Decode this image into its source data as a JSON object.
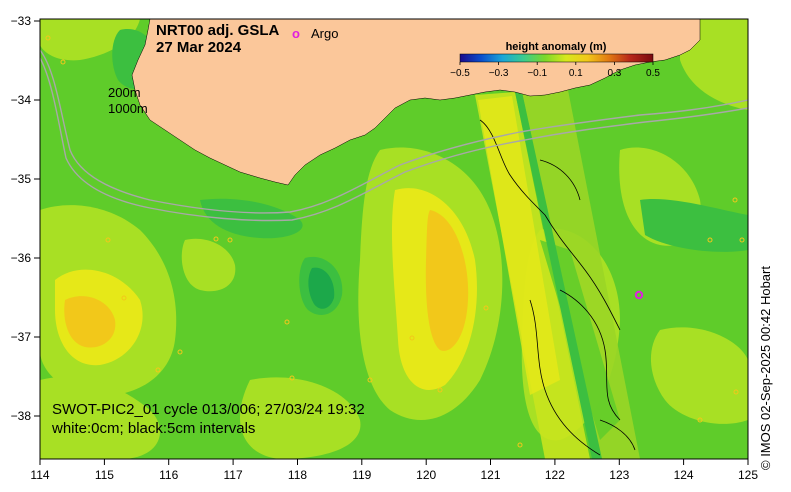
{
  "title": {
    "product": "NRT00 adj. GSLA",
    "date": "27 Mar 2024"
  },
  "legend": {
    "argo_symbol": "o",
    "argo_label": "Argo",
    "colorbar_title": "height anomaly (m)",
    "colorbar_ticks": [
      "−0.5",
      "−0.3",
      "−0.1",
      "0.1",
      "0.3",
      "0.5"
    ],
    "colorbar_stops": [
      "#1a0a8c",
      "#0a4ecc",
      "#1aa6d8",
      "#3ccc8e",
      "#7cd82a",
      "#d8e81c",
      "#f2c81a",
      "#e27a12",
      "#b8281a",
      "#7a0a10"
    ]
  },
  "isobaths": {
    "label_200": "200m",
    "label_1000": "1000m"
  },
  "annotation": {
    "line1": "SWOT-PIC2_01 cycle 013/006; 27/03/24 19:32",
    "line2": "white:0cm; black:5cm intervals"
  },
  "credit": "© IMOS 02-Sep-2025 00:42 Hobart",
  "axes": {
    "x_ticks": [
      "114",
      "115",
      "116",
      "117",
      "118",
      "119",
      "120",
      "121",
      "122",
      "123",
      "124",
      "125"
    ],
    "y_ticks": [
      "−33",
      "−34",
      "−35",
      "−36",
      "−37",
      "−38"
    ]
  },
  "colors": {
    "land": "#fbc79a",
    "ocean_base": "#5fcc2a",
    "grid": "#000000",
    "isobath": "#a8a8a8",
    "argo": "#e020e0"
  }
}
